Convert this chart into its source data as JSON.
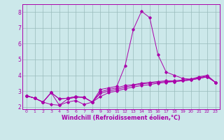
{
  "xlabel": "Windchill (Refroidissement éolien,°C)",
  "ylabel": "",
  "bg_color": "#cce8ea",
  "line_color": "#aa00aa",
  "grid_color": "#99bbbb",
  "x": [
    0,
    1,
    2,
    3,
    4,
    5,
    6,
    7,
    8,
    9,
    10,
    11,
    12,
    13,
    14,
    15,
    16,
    17,
    18,
    19,
    20,
    21,
    22,
    23
  ],
  "y_main": [
    2.7,
    2.55,
    2.3,
    2.9,
    2.1,
    2.5,
    2.6,
    2.6,
    2.3,
    3.1,
    3.2,
    3.3,
    4.6,
    6.9,
    8.05,
    7.65,
    5.3,
    4.2,
    4.0,
    3.8,
    3.75,
    3.9,
    4.0,
    3.55
  ],
  "y_line2": [
    2.7,
    2.55,
    2.3,
    2.9,
    2.5,
    2.55,
    2.65,
    2.6,
    2.3,
    2.95,
    3.1,
    3.2,
    3.35,
    3.4,
    3.5,
    3.55,
    3.6,
    3.65,
    3.65,
    3.7,
    3.75,
    3.85,
    3.95,
    3.55
  ],
  "y_line3": [
    2.7,
    2.55,
    2.3,
    2.15,
    2.1,
    2.3,
    2.4,
    2.15,
    2.3,
    2.65,
    2.9,
    3.0,
    3.15,
    3.25,
    3.35,
    3.4,
    3.5,
    3.55,
    3.6,
    3.65,
    3.7,
    3.8,
    3.9,
    3.55
  ],
  "y_line4": [
    2.7,
    2.55,
    2.3,
    2.9,
    2.5,
    2.55,
    2.65,
    2.6,
    2.3,
    2.85,
    3.0,
    3.1,
    3.25,
    3.35,
    3.45,
    3.5,
    3.55,
    3.6,
    3.6,
    3.65,
    3.7,
    3.8,
    3.9,
    3.55
  ],
  "ylim": [
    1.85,
    8.5
  ],
  "xlim": [
    -0.5,
    23.5
  ],
  "yticks": [
    2,
    3,
    4,
    5,
    6,
    7,
    8
  ],
  "xticks": [
    0,
    1,
    2,
    3,
    4,
    5,
    6,
    7,
    8,
    9,
    10,
    11,
    12,
    13,
    14,
    15,
    16,
    17,
    18,
    19,
    20,
    21,
    22,
    23
  ]
}
